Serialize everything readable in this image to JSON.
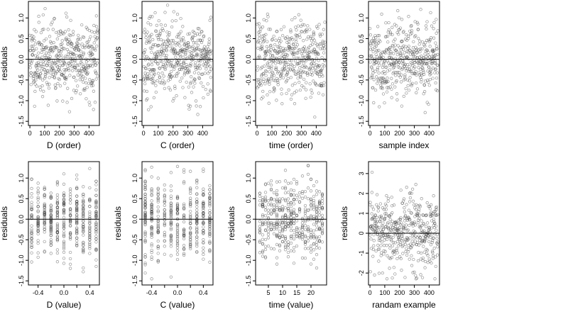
{
  "chart_data": [
    {
      "type": "scatter",
      "xlabel": "D (order)",
      "ylabel": "residuals",
      "xlim": [
        -10,
        470
      ],
      "ylim": [
        -1.6,
        1.4
      ],
      "xticks": [
        0,
        100,
        200,
        300,
        400
      ],
      "xtick_labels": [
        "0",
        "100",
        "200",
        "300",
        "400"
      ],
      "yticks": [
        -1.5,
        -1.0,
        -0.5,
        0.0,
        0.5,
        1.0
      ],
      "ytick_labels": [
        "-1.5",
        "-1.0",
        "-0.5",
        "0.0",
        "0.5",
        "1.0"
      ],
      "hline": 0,
      "n_points": 460,
      "x_kind": "index",
      "y_sd": 0.45,
      "seed": 11
    },
    {
      "type": "scatter",
      "xlabel": "C (order)",
      "ylabel": "residuals",
      "xlim": [
        -10,
        470
      ],
      "ylim": [
        -1.6,
        1.4
      ],
      "xticks": [
        0,
        100,
        200,
        300,
        400
      ],
      "xtick_labels": [
        "0",
        "100",
        "200",
        "300",
        "400"
      ],
      "yticks": [
        -1.5,
        -1.0,
        -0.5,
        0.0,
        0.5,
        1.0
      ],
      "ytick_labels": [
        "-1.5",
        "-1.0",
        "-0.5",
        "0.0",
        "0.5",
        "1.0"
      ],
      "hline": 0,
      "n_points": 460,
      "x_kind": "index",
      "y_sd": 0.45,
      "seed": 23
    },
    {
      "type": "scatter",
      "xlabel": "time (order)",
      "ylabel": "residuals",
      "xlim": [
        -10,
        470
      ],
      "ylim": [
        -1.6,
        1.4
      ],
      "xticks": [
        0,
        100,
        200,
        300,
        400
      ],
      "xtick_labels": [
        "0",
        "100",
        "200",
        "300",
        "400"
      ],
      "yticks": [
        -1.5,
        -1.0,
        -0.5,
        0.0,
        0.5,
        1.0
      ],
      "ytick_labels": [
        "-1.5",
        "-1.0",
        "-0.5",
        "0.0",
        "0.5",
        "1.0"
      ],
      "hline": 0,
      "n_points": 460,
      "x_kind": "index",
      "y_sd": 0.45,
      "seed": 37
    },
    {
      "type": "scatter",
      "xlabel": "sample index",
      "ylabel": "residuals",
      "xlim": [
        -10,
        470
      ],
      "ylim": [
        -1.6,
        1.4
      ],
      "xticks": [
        0,
        100,
        200,
        300,
        400
      ],
      "xtick_labels": [
        "0",
        "100",
        "200",
        "300",
        "400"
      ],
      "yticks": [
        -1.5,
        -1.0,
        -0.5,
        0.0,
        0.5,
        1.0
      ],
      "ytick_labels": [
        "-1.5",
        "-1.0",
        "-0.5",
        "0.0",
        "0.5",
        "1.0"
      ],
      "hline": 0,
      "n_points": 460,
      "x_kind": "index",
      "y_sd": 0.45,
      "seed": 41
    },
    {
      "type": "scatter",
      "xlabel": "D (value)",
      "ylabel": "residuals",
      "xlim": [
        -0.55,
        0.55
      ],
      "ylim": [
        -1.6,
        1.4
      ],
      "xticks": [
        -0.4,
        -0.2,
        0.0,
        0.2,
        0.4
      ],
      "xtick_labels": [
        "-0.4",
        "",
        "0.0",
        "",
        "0.4"
      ],
      "yticks": [
        -1.5,
        -1.0,
        -0.5,
        0.0,
        0.5,
        1.0
      ],
      "ytick_labels": [
        "-1.5",
        "-1.0",
        "-0.5",
        "0.0",
        "0.5",
        "1.0"
      ],
      "hline": 0,
      "n_points": 460,
      "x_kind": "discrete",
      "x_levels": [
        -0.5,
        -0.4,
        -0.3,
        -0.2,
        -0.1,
        0.0,
        0.1,
        0.2,
        0.3,
        0.4,
        0.5
      ],
      "y_sd": 0.45,
      "seed": 53
    },
    {
      "type": "scatter",
      "xlabel": "C (value)",
      "ylabel": "residuals",
      "xlim": [
        -0.55,
        0.55
      ],
      "ylim": [
        -1.6,
        1.4
      ],
      "xticks": [
        -0.4,
        -0.2,
        0.0,
        0.2,
        0.4
      ],
      "xtick_labels": [
        "-0.4",
        "",
        "0.0",
        "",
        "0.4"
      ],
      "yticks": [
        -1.5,
        -1.0,
        -0.5,
        0.0,
        0.5,
        1.0
      ],
      "ytick_labels": [
        "-1.5",
        "-1.0",
        "-0.5",
        "0.0",
        "0.5",
        "1.0"
      ],
      "hline": 0,
      "n_points": 460,
      "x_kind": "discrete",
      "x_levels": [
        -0.5,
        -0.4,
        -0.3,
        -0.2,
        -0.1,
        0.0,
        0.1,
        0.2,
        0.3,
        0.4,
        0.5
      ],
      "y_sd": 0.45,
      "seed": 67
    },
    {
      "type": "scatter",
      "xlabel": "time (value)",
      "ylabel": "residuals",
      "xlim": [
        0.5,
        25.5
      ],
      "ylim": [
        -1.6,
        1.4
      ],
      "xticks": [
        5,
        10,
        15,
        20
      ],
      "xtick_labels": [
        "5",
        "10",
        "15",
        "20"
      ],
      "yticks": [
        -1.5,
        -1.0,
        -0.5,
        0.0,
        0.5,
        1.0
      ],
      "ytick_labels": [
        "-1.5",
        "-1.0",
        "-0.5",
        "0.0",
        "0.5",
        "1.0"
      ],
      "hline": 0,
      "n_points": 460,
      "x_kind": "discrete",
      "x_levels": [
        2,
        3,
        4,
        5,
        6,
        7,
        8,
        9,
        10,
        11,
        12,
        13,
        14,
        15,
        16,
        17,
        18,
        19,
        20,
        21,
        22,
        23,
        24
      ],
      "y_sd": 0.45,
      "seed": 79
    },
    {
      "type": "scatter",
      "xlabel": "randam example",
      "ylabel": "residuals",
      "xlim": [
        -10,
        470
      ],
      "ylim": [
        -2.6,
        3.6
      ],
      "xticks": [
        0,
        100,
        200,
        300,
        400
      ],
      "xtick_labels": [
        "0",
        "100",
        "200",
        "300",
        "400"
      ],
      "yticks": [
        -2,
        -1,
        0,
        1,
        2,
        3
      ],
      "ytick_labels": [
        "-2",
        "-1",
        "0",
        "1",
        "2",
        "3"
      ],
      "hline": 0,
      "n_points": 460,
      "x_kind": "index",
      "y_sd": 1.0,
      "seed": 97
    }
  ]
}
